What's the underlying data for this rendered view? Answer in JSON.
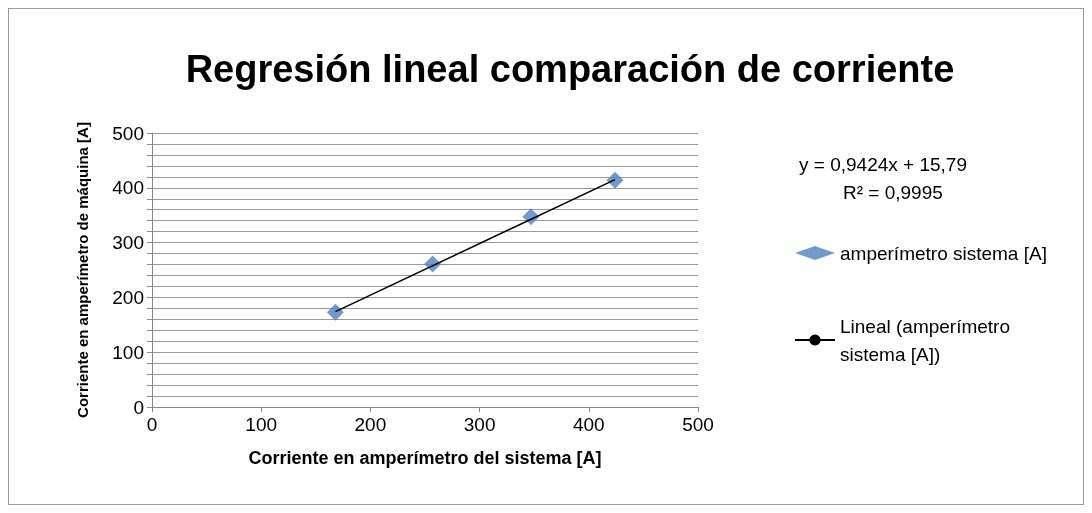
{
  "chart_data": {
    "type": "scatter",
    "title": "Regresión lineal comparación de corriente",
    "xlabel": "Corriente en amperímetro del sistema [A]",
    "ylabel": "Corriente en amperímetro de máquina [A]",
    "xlim": [
      0,
      500
    ],
    "xticks": [
      0,
      100,
      200,
      300,
      400,
      500
    ],
    "ylim": [
      0,
      500
    ],
    "yticks": [
      0,
      {
        "value": 20,
        "label": null
      },
      {
        "value": 40,
        "label": null
      },
      {
        "value": 60,
        "label": null
      },
      {
        "value": 80,
        "label": null
      },
      100,
      {
        "value": 120,
        "label": null
      },
      {
        "value": 140,
        "label": null
      },
      {
        "value": 160,
        "label": null
      },
      {
        "value": 180,
        "label": null
      },
      200,
      {
        "value": 220,
        "label": null
      },
      {
        "value": 240,
        "label": null
      },
      {
        "value": 260,
        "label": null
      },
      {
        "value": 280,
        "label": null
      },
      300,
      {
        "value": 320,
        "label": null
      },
      {
        "value": 340,
        "label": null
      },
      {
        "value": 360,
        "label": null
      },
      {
        "value": 380,
        "label": null
      },
      400,
      {
        "value": 420,
        "label": null
      },
      {
        "value": 440,
        "label": null
      },
      {
        "value": 460,
        "label": null
      },
      {
        "value": 480,
        "label": null
      },
      500
    ],
    "grid": "y",
    "legend": "right",
    "marker": "diamond",
    "annotations": [
      "y = 0,9424x + 15,79",
      "R² = 0,9995"
    ],
    "series": [
      {
        "name": "amperímetro sistema [A]",
        "color": "#4f81bd",
        "x": [
          168,
          257,
          347,
          424
        ],
        "values": [
          173,
          261,
          347,
          414
        ]
      },
      {
        "name": "Lineal (amperímetro sistema [A])",
        "type": "line",
        "marker": "none",
        "color": "#000000",
        "x": [
          168,
          424
        ],
        "values": [
          174,
          415
        ]
      }
    ]
  }
}
